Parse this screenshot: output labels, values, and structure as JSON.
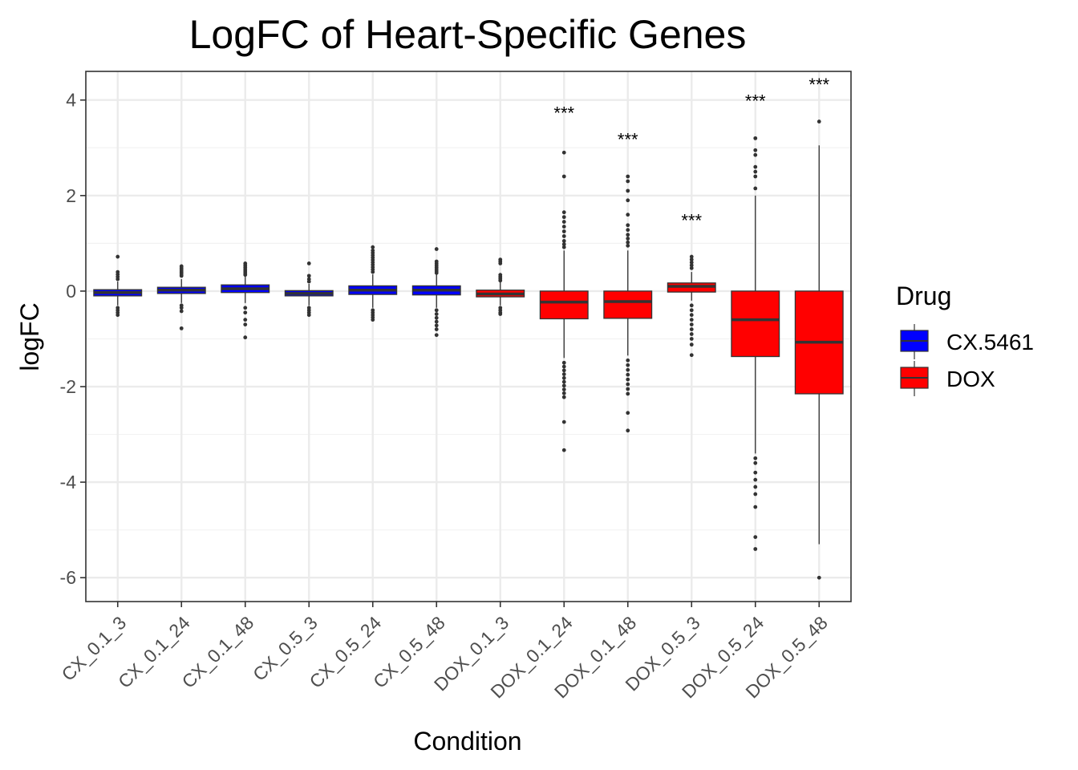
{
  "chart_data": {
    "type": "box",
    "title": "LogFC of Heart-Specific Genes",
    "xlabel": "Condition",
    "ylabel": "logFC",
    "ylim": [
      -6.5,
      4.6
    ],
    "yticks": [
      4,
      2,
      0,
      -2,
      -4,
      -6
    ],
    "ytick_labels": [
      "4",
      "2",
      "0",
      "-2",
      "-4",
      "-6"
    ],
    "grid": true,
    "legend": {
      "title": "Drug",
      "position": "right",
      "entries": [
        {
          "label": "CX.5461",
          "color": "#0000ff"
        },
        {
          "label": "DOX",
          "color": "#ff0000"
        }
      ]
    },
    "categories": [
      "CX_0.1_3",
      "CX_0.1_24",
      "CX_0.1_48",
      "CX_0.5_3",
      "CX_0.5_24",
      "CX_0.5_48",
      "DOX_0.1_3",
      "DOX_0.1_24",
      "DOX_0.1_48",
      "DOX_0.5_3",
      "DOX_0.5_24",
      "DOX_0.5_48"
    ],
    "boxes": [
      {
        "drug": "CX.5461",
        "q1": -0.1,
        "median": -0.03,
        "q3": 0.03,
        "wlo": -0.3,
        "whi": 0.2,
        "outliers": [
          0.72,
          0.4,
          0.35,
          0.3,
          0.25,
          -0.35,
          -0.4,
          -0.45,
          -0.5
        ]
      },
      {
        "drug": "CX.5461",
        "q1": -0.05,
        "median": 0.02,
        "q3": 0.08,
        "wlo": -0.25,
        "whi": 0.25,
        "outliers": [
          0.52,
          0.48,
          0.44,
          0.4,
          0.36,
          0.32,
          -0.3,
          -0.35,
          -0.42,
          -0.78
        ]
      },
      {
        "drug": "CX.5461",
        "q1": -0.03,
        "median": 0.05,
        "q3": 0.13,
        "wlo": -0.25,
        "whi": 0.3,
        "outliers": [
          0.58,
          0.54,
          0.5,
          0.46,
          0.42,
          0.38,
          0.34,
          -0.35,
          -0.45,
          -0.6,
          -0.7,
          -0.97
        ]
      },
      {
        "drug": "CX.5461",
        "q1": -0.1,
        "median": -0.05,
        "q3": 0.01,
        "wlo": -0.3,
        "whi": 0.15,
        "outliers": [
          0.58,
          0.32,
          0.25,
          0.2,
          -0.35,
          -0.4,
          -0.45,
          -0.5
        ]
      },
      {
        "drug": "CX.5461",
        "q1": -0.07,
        "median": 0.02,
        "q3": 0.11,
        "wlo": -0.35,
        "whi": 0.35,
        "outliers": [
          0.92,
          0.85,
          0.8,
          0.75,
          0.7,
          0.65,
          0.6,
          0.55,
          0.5,
          0.45,
          0.4,
          -0.4,
          -0.45,
          -0.5,
          -0.55,
          -0.6
        ]
      },
      {
        "drug": "CX.5461",
        "q1": -0.08,
        "median": 0.02,
        "q3": 0.11,
        "wlo": -0.35,
        "whi": 0.35,
        "outliers": [
          0.88,
          0.62,
          0.58,
          0.54,
          0.5,
          0.46,
          0.42,
          0.38,
          -0.4,
          -0.48,
          -0.56,
          -0.64,
          -0.72,
          -0.8,
          -0.92
        ]
      },
      {
        "drug": "DOX",
        "q1": -0.12,
        "median": -0.06,
        "q3": 0.02,
        "wlo": -0.3,
        "whi": 0.2,
        "outliers": [
          0.66,
          0.62,
          0.58,
          0.34,
          0.3,
          0.26,
          0.22,
          -0.35,
          -0.4,
          -0.45,
          -0.48
        ]
      },
      {
        "drug": "DOX",
        "q1": -0.58,
        "median": -0.23,
        "q3": 0.0,
        "wlo": -1.4,
        "whi": 0.85,
        "outliers": [
          2.9,
          2.4,
          1.65,
          1.55,
          1.45,
          1.35,
          1.25,
          1.15,
          1.05,
          0.98,
          0.92,
          -1.5,
          -1.58,
          -1.66,
          -1.74,
          -1.82,
          -1.9,
          -1.98,
          -2.06,
          -2.14,
          -2.22,
          -2.74,
          -3.33
        ]
      },
      {
        "drug": "DOX",
        "q1": -0.57,
        "median": -0.22,
        "q3": 0.0,
        "wlo": -1.35,
        "whi": 0.85,
        "outliers": [
          2.4,
          2.3,
          2.1,
          1.9,
          1.6,
          1.38,
          1.28,
          1.18,
          1.1,
          1.02,
          0.95,
          -1.45,
          -1.55,
          -1.65,
          -1.75,
          -1.85,
          -1.95,
          -2.05,
          -2.15,
          -2.55,
          -2.92
        ]
      },
      {
        "drug": "DOX",
        "q1": -0.02,
        "median": 0.1,
        "q3": 0.17,
        "wlo": -0.2,
        "whi": 0.4,
        "outliers": [
          0.72,
          0.66,
          0.6,
          0.54,
          0.48,
          -0.3,
          -0.4,
          -0.5,
          -0.6,
          -0.7,
          -0.8,
          -0.9,
          -1.0,
          -1.12,
          -1.34
        ]
      },
      {
        "drug": "DOX",
        "q1": -1.37,
        "median": -0.6,
        "q3": 0.0,
        "wlo": -3.4,
        "whi": 2.0,
        "outliers": [
          3.2,
          2.95,
          2.85,
          2.6,
          2.5,
          2.4,
          2.15,
          -3.5,
          -3.6,
          -3.8,
          -3.95,
          -4.1,
          -4.25,
          -4.52,
          -5.15,
          -5.4
        ]
      },
      {
        "drug": "DOX",
        "q1": -2.15,
        "median": -1.07,
        "q3": 0.0,
        "wlo": -5.3,
        "whi": 3.05,
        "outliers": [
          3.55,
          -6.0
        ]
      }
    ],
    "significance": [
      {
        "index": 7,
        "label": "***",
        "y": 3.6
      },
      {
        "index": 8,
        "label": "***",
        "y": 3.05
      },
      {
        "index": 9,
        "label": "***",
        "y": 1.35
      },
      {
        "index": 10,
        "label": "***",
        "y": 3.85
      },
      {
        "index": 11,
        "label": "***",
        "y": 4.2
      }
    ]
  }
}
